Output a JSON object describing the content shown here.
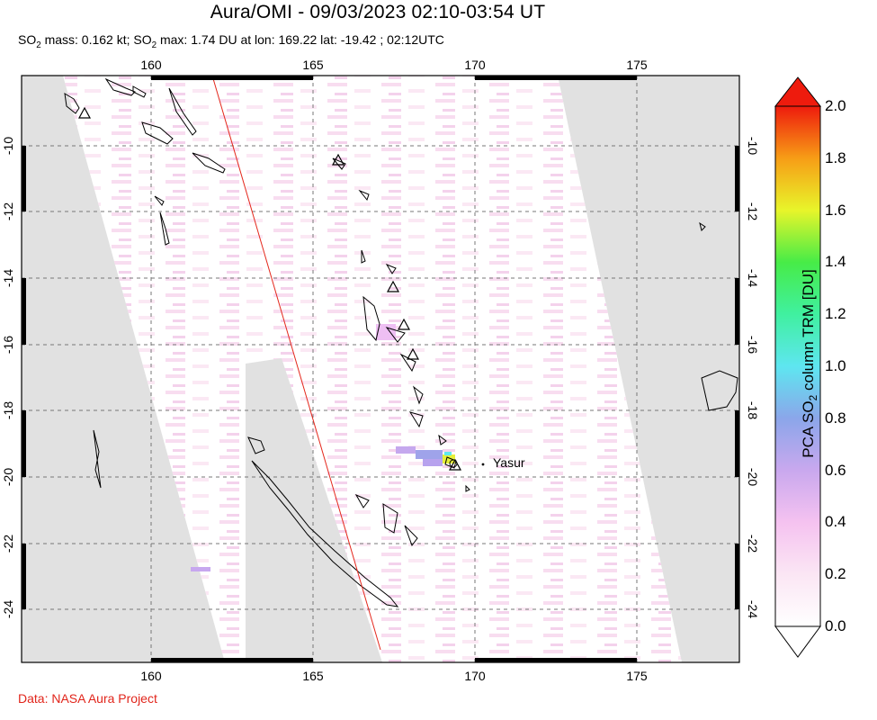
{
  "title": "Aura/OMI - 09/03/2023 02:10-03:54 UT",
  "subtitle": {
    "mass_prefix": "SO",
    "mass_sub": "2",
    "mass_text": " mass: 0.162 kt; SO",
    "max_sub": "2",
    "max_text": " max: 1.74 DU at lon: 169.22 lat: -19.42 ; 02:12UTC"
  },
  "credit": "Data: NASA Aura Project",
  "map": {
    "lon_ticks": [
      "160",
      "165",
      "170",
      "175"
    ],
    "lat_ticks": [
      "-10",
      "-12",
      "-14",
      "-16",
      "-18",
      "-20",
      "-22",
      "-24"
    ],
    "volcano_label": "Yasur",
    "colors": {
      "no_data": "#e1e1e1",
      "track_line": "#e4271c",
      "coast": "#000000"
    }
  },
  "colorbar": {
    "label_pre": "PCA SO",
    "label_sub": "2",
    "label_post": " column TRM [DU]",
    "ticks": [
      "2.0",
      "1.8",
      "1.6",
      "1.4",
      "1.2",
      "1.0",
      "0.8",
      "0.6",
      "0.4",
      "0.2",
      "0.0"
    ],
    "min": 0.0,
    "max": 2.0
  }
}
